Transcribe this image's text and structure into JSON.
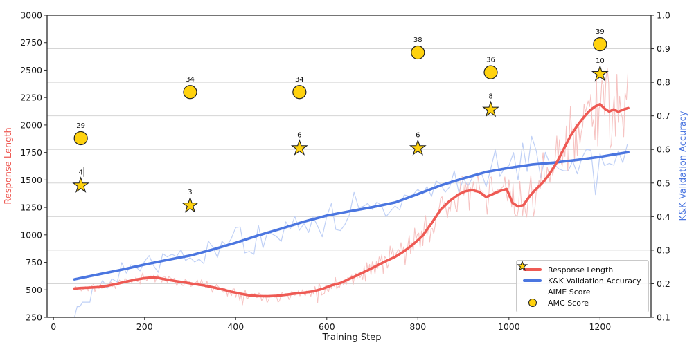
{
  "chart_data": {
    "type": "line",
    "title": "",
    "xlabel": "Training Step",
    "ylabel_left": "Response Length",
    "ylabel_right": "K&K Validation Accuracy",
    "xlim": [
      -14,
      1312
    ],
    "ylim_left": [
      250,
      3000
    ],
    "ylim_right": [
      0.1,
      1.0
    ],
    "x_ticks": [
      0,
      200,
      400,
      600,
      800,
      1000,
      1200
    ],
    "y_ticks_left": [
      250,
      500,
      750,
      1000,
      1250,
      1500,
      1750,
      2000,
      2250,
      2500,
      2750,
      3000
    ],
    "y_ticks_right": [
      0.1,
      0.2,
      0.3,
      0.4,
      0.5,
      0.6,
      0.7,
      0.8,
      0.9,
      1.0
    ],
    "grid": {
      "show": true,
      "orientation": "horizontal",
      "aligned_to": "right_axis_ticks"
    },
    "colors": {
      "response_length": "#ee5a54",
      "response_length_raw": "#f5b9b7",
      "kk_accuracy": "#4b76e0",
      "kk_accuracy_raw": "#bccef5",
      "marker_fill": "#ffd20e",
      "marker_edge": "#222222",
      "grid": "#d5d5d5",
      "spine": "#2b2b2b",
      "tick_label": "#1a1a1a",
      "marker_label": "#111111"
    },
    "series": {
      "response_length_smooth": {
        "name": "Response Length",
        "axis": "left",
        "style": "smooth",
        "points": [
          [
            46,
            512
          ],
          [
            60,
            516
          ],
          [
            80,
            520
          ],
          [
            100,
            525
          ],
          [
            120,
            538
          ],
          [
            140,
            555
          ],
          [
            160,
            575
          ],
          [
            180,
            592
          ],
          [
            200,
            606
          ],
          [
            215,
            612
          ],
          [
            230,
            608
          ],
          [
            250,
            592
          ],
          [
            270,
            578
          ],
          [
            290,
            566
          ],
          [
            310,
            552
          ],
          [
            330,
            540
          ],
          [
            350,
            523
          ],
          [
            370,
            505
          ],
          [
            390,
            483
          ],
          [
            410,
            465
          ],
          [
            430,
            450
          ],
          [
            450,
            443
          ],
          [
            470,
            441
          ],
          [
            490,
            446
          ],
          [
            510,
            455
          ],
          [
            530,
            466
          ],
          [
            550,
            474
          ],
          [
            570,
            486
          ],
          [
            590,
            508
          ],
          [
            610,
            540
          ],
          [
            630,
            562
          ],
          [
            650,
            600
          ],
          [
            670,
            638
          ],
          [
            690,
            678
          ],
          [
            710,
            720
          ],
          [
            730,
            762
          ],
          [
            750,
            800
          ],
          [
            770,
            852
          ],
          [
            790,
            915
          ],
          [
            810,
            990
          ],
          [
            830,
            1105
          ],
          [
            850,
            1230
          ],
          [
            870,
            1310
          ],
          [
            890,
            1370
          ],
          [
            905,
            1398
          ],
          [
            920,
            1408
          ],
          [
            935,
            1390
          ],
          [
            950,
            1345
          ],
          [
            965,
            1372
          ],
          [
            980,
            1400
          ],
          [
            995,
            1418
          ],
          [
            1008,
            1290
          ],
          [
            1020,
            1260
          ],
          [
            1032,
            1272
          ],
          [
            1045,
            1350
          ],
          [
            1060,
            1420
          ],
          [
            1075,
            1480
          ],
          [
            1090,
            1560
          ],
          [
            1105,
            1660
          ],
          [
            1120,
            1780
          ],
          [
            1135,
            1900
          ],
          [
            1150,
            1995
          ],
          [
            1165,
            2075
          ],
          [
            1178,
            2135
          ],
          [
            1190,
            2170
          ],
          [
            1200,
            2190
          ],
          [
            1210,
            2150
          ],
          [
            1220,
            2122
          ],
          [
            1230,
            2142
          ],
          [
            1240,
            2120
          ],
          [
            1250,
            2140
          ],
          [
            1262,
            2155
          ]
        ]
      },
      "kk_accuracy_smooth": {
        "name": "K&K Validation Accuracy",
        "axis": "right",
        "style": "smooth",
        "points": [
          [
            46,
            0.213
          ],
          [
            100,
            0.228
          ],
          [
            150,
            0.242
          ],
          [
            200,
            0.257
          ],
          [
            250,
            0.271
          ],
          [
            300,
            0.284
          ],
          [
            350,
            0.302
          ],
          [
            400,
            0.322
          ],
          [
            450,
            0.344
          ],
          [
            500,
            0.364
          ],
          [
            550,
            0.385
          ],
          [
            600,
            0.403
          ],
          [
            650,
            0.416
          ],
          [
            700,
            0.428
          ],
          [
            750,
            0.442
          ],
          [
            800,
            0.467
          ],
          [
            850,
            0.493
          ],
          [
            900,
            0.514
          ],
          [
            950,
            0.533
          ],
          [
            1000,
            0.545
          ],
          [
            1050,
            0.555
          ],
          [
            1100,
            0.561
          ],
          [
            1150,
            0.569
          ],
          [
            1200,
            0.578
          ],
          [
            1230,
            0.585
          ],
          [
            1262,
            0.592
          ]
        ]
      },
      "response_length_raw": {
        "axis": "left",
        "style": "raw",
        "derived": "smooth plus high-frequency noise",
        "seed": 11,
        "sample_step": 3,
        "noise_amp": [
          [
            46,
            30
          ],
          [
            150,
            42
          ],
          [
            300,
            48
          ],
          [
            450,
            42
          ],
          [
            550,
            55
          ],
          [
            650,
            75
          ],
          [
            750,
            115
          ],
          [
            850,
            150
          ],
          [
            950,
            160
          ],
          [
            1020,
            215
          ],
          [
            1080,
            260
          ],
          [
            1120,
            330
          ],
          [
            1160,
            360
          ],
          [
            1262,
            370
          ]
        ]
      },
      "kk_accuracy_raw": {
        "axis": "right",
        "style": "raw",
        "derived": "smooth plus noise",
        "seed": 5,
        "sample_step": 10,
        "early_points": [
          [
            46,
            0.1
          ],
          [
            52,
            0.132
          ],
          [
            58,
            0.132
          ],
          [
            64,
            0.145
          ],
          [
            80,
            0.145
          ],
          [
            86,
            0.19
          ],
          [
            100,
            0.19
          ],
          [
            108,
            0.21
          ],
          [
            118,
            0.186
          ],
          [
            128,
            0.215
          ],
          [
            140,
            0.205
          ]
        ],
        "noise_amp": [
          [
            150,
            0.032
          ],
          [
            300,
            0.042
          ],
          [
            500,
            0.05
          ],
          [
            700,
            0.052
          ],
          [
            850,
            0.045
          ],
          [
            950,
            0.05
          ],
          [
            1050,
            0.062
          ],
          [
            1150,
            0.07
          ],
          [
            1262,
            0.06
          ]
        ]
      },
      "aime": {
        "name": "AIME Score",
        "marker": "star",
        "points": [
          {
            "x": 60,
            "score": 4,
            "y_left": 1450,
            "leader": true
          },
          {
            "x": 300,
            "score": 3,
            "y_left": 1268
          },
          {
            "x": 540,
            "score": 6,
            "y_left": 1790
          },
          {
            "x": 800,
            "score": 6,
            "y_left": 1790
          },
          {
            "x": 960,
            "score": 8,
            "y_left": 2140
          },
          {
            "x": 1200,
            "score": 10,
            "y_left": 2465
          }
        ]
      },
      "amc": {
        "name": "AMC Score",
        "marker": "circle",
        "points": [
          {
            "x": 60,
            "score": 29,
            "y_left": 1880
          },
          {
            "x": 300,
            "score": 34,
            "y_left": 2300
          },
          {
            "x": 540,
            "score": 34,
            "y_left": 2300
          },
          {
            "x": 800,
            "score": 38,
            "y_left": 2660
          },
          {
            "x": 960,
            "score": 36,
            "y_left": 2480
          },
          {
            "x": 1200,
            "score": 39,
            "y_left": 2735
          }
        ]
      }
    },
    "legend": {
      "position": "lower right",
      "items": [
        {
          "label": "Response Length",
          "swatch": "red-line"
        },
        {
          "label": "K&K Validation Accuracy",
          "swatch": "blue-line"
        },
        {
          "label": "AIME Score",
          "swatch": "star"
        },
        {
          "label": "AMC Score",
          "swatch": "circle"
        }
      ]
    }
  }
}
